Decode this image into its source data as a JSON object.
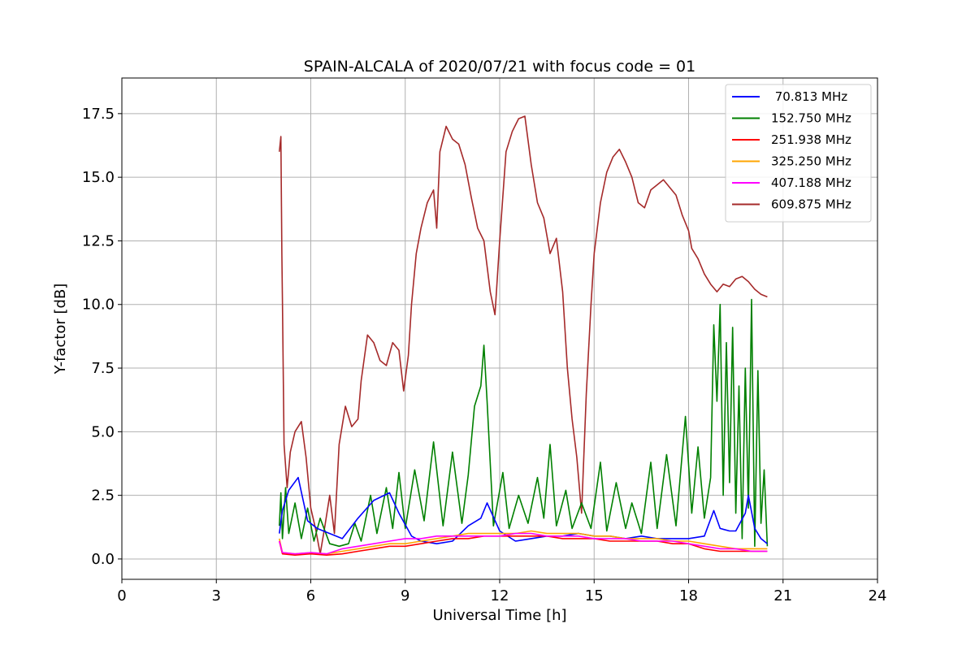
{
  "chart_data": {
    "type": "line",
    "title": "SPAIN-ALCALA of 2020/07/21 with focus code = 01",
    "xlabel": "Universal Time [h]",
    "ylabel": "Y-factor [dB]",
    "xlim": [
      0,
      24
    ],
    "ylim": [
      -0.8,
      18.9
    ],
    "xticks": [
      0,
      3,
      6,
      9,
      12,
      15,
      18,
      21,
      24
    ],
    "xtick_labels": [
      "0",
      "3",
      "6",
      "9",
      "12",
      "15",
      "18",
      "21",
      "24"
    ],
    "yticks": [
      0,
      2.5,
      5,
      7.5,
      10,
      12.5,
      15,
      17.5
    ],
    "ytick_labels": [
      "0.0",
      "2.5",
      "5.0",
      "7.5",
      "10.0",
      "12.5",
      "15.0",
      "17.5"
    ],
    "grid": true,
    "legend_position": "top-right",
    "series": [
      {
        "name": " 70.813 MHz",
        "color": "#0000ff",
        "points": [
          [
            5.0,
            1.0
          ],
          [
            5.1,
            1.9
          ],
          [
            5.3,
            2.7
          ],
          [
            5.6,
            3.2
          ],
          [
            5.9,
            1.5
          ],
          [
            6.2,
            1.2
          ],
          [
            6.6,
            1.0
          ],
          [
            7.0,
            0.8
          ],
          [
            7.5,
            1.6
          ],
          [
            8.0,
            2.3
          ],
          [
            8.5,
            2.6
          ],
          [
            8.8,
            1.8
          ],
          [
            9.2,
            0.9
          ],
          [
            9.5,
            0.7
          ],
          [
            10.0,
            0.6
          ],
          [
            10.5,
            0.7
          ],
          [
            11.0,
            1.3
          ],
          [
            11.4,
            1.6
          ],
          [
            11.6,
            2.2
          ],
          [
            12.0,
            1.1
          ],
          [
            12.5,
            0.7
          ],
          [
            13.0,
            0.8
          ],
          [
            13.5,
            0.9
          ],
          [
            14.0,
            0.9
          ],
          [
            14.5,
            1.0
          ],
          [
            15.0,
            0.9
          ],
          [
            15.5,
            0.9
          ],
          [
            16.0,
            0.8
          ],
          [
            16.5,
            0.9
          ],
          [
            17.0,
            0.8
          ],
          [
            17.5,
            0.8
          ],
          [
            18.0,
            0.8
          ],
          [
            18.5,
            0.9
          ],
          [
            18.8,
            1.9
          ],
          [
            19.0,
            1.2
          ],
          [
            19.3,
            1.1
          ],
          [
            19.5,
            1.1
          ],
          [
            19.8,
            1.8
          ],
          [
            19.9,
            2.5
          ],
          [
            20.1,
            1.2
          ],
          [
            20.3,
            0.8
          ],
          [
            20.5,
            0.6
          ]
        ]
      },
      {
        "name": "152.750 MHz",
        "color": "#008000",
        "points": [
          [
            5.0,
            1.3
          ],
          [
            5.05,
            2.6
          ],
          [
            5.1,
            0.8
          ],
          [
            5.2,
            2.8
          ],
          [
            5.3,
            1.0
          ],
          [
            5.5,
            2.2
          ],
          [
            5.7,
            0.8
          ],
          [
            5.9,
            2.0
          ],
          [
            6.1,
            0.7
          ],
          [
            6.3,
            1.6
          ],
          [
            6.6,
            0.6
          ],
          [
            6.9,
            0.5
          ],
          [
            7.2,
            0.6
          ],
          [
            7.4,
            1.4
          ],
          [
            7.6,
            0.7
          ],
          [
            7.9,
            2.5
          ],
          [
            8.1,
            1.0
          ],
          [
            8.4,
            2.8
          ],
          [
            8.6,
            1.2
          ],
          [
            8.8,
            3.4
          ],
          [
            9.0,
            1.2
          ],
          [
            9.3,
            3.5
          ],
          [
            9.6,
            1.5
          ],
          [
            9.9,
            4.6
          ],
          [
            10.2,
            1.3
          ],
          [
            10.5,
            4.2
          ],
          [
            10.8,
            1.4
          ],
          [
            11.0,
            3.3
          ],
          [
            11.2,
            6.0
          ],
          [
            11.4,
            6.8
          ],
          [
            11.5,
            8.4
          ],
          [
            11.6,
            6.2
          ],
          [
            11.8,
            1.3
          ],
          [
            12.1,
            3.4
          ],
          [
            12.3,
            1.2
          ],
          [
            12.6,
            2.5
          ],
          [
            12.9,
            1.4
          ],
          [
            13.2,
            3.2
          ],
          [
            13.4,
            1.6
          ],
          [
            13.6,
            4.5
          ],
          [
            13.8,
            1.3
          ],
          [
            14.1,
            2.7
          ],
          [
            14.3,
            1.2
          ],
          [
            14.6,
            2.2
          ],
          [
            14.9,
            1.2
          ],
          [
            15.2,
            3.8
          ],
          [
            15.4,
            1.1
          ],
          [
            15.7,
            3.0
          ],
          [
            16.0,
            1.2
          ],
          [
            16.2,
            2.2
          ],
          [
            16.5,
            1.0
          ],
          [
            16.8,
            3.8
          ],
          [
            17.0,
            1.2
          ],
          [
            17.3,
            4.1
          ],
          [
            17.6,
            1.3
          ],
          [
            17.9,
            5.6
          ],
          [
            18.1,
            1.8
          ],
          [
            18.3,
            4.4
          ],
          [
            18.5,
            1.6
          ],
          [
            18.7,
            3.2
          ],
          [
            18.8,
            9.2
          ],
          [
            18.9,
            6.2
          ],
          [
            19.0,
            10.0
          ],
          [
            19.1,
            2.5
          ],
          [
            19.2,
            8.5
          ],
          [
            19.3,
            3.0
          ],
          [
            19.4,
            9.1
          ],
          [
            19.5,
            1.8
          ],
          [
            19.6,
            6.8
          ],
          [
            19.7,
            0.8
          ],
          [
            19.8,
            7.5
          ],
          [
            19.9,
            2.0
          ],
          [
            20.0,
            10.2
          ],
          [
            20.1,
            0.5
          ],
          [
            20.2,
            7.4
          ],
          [
            20.3,
            1.4
          ],
          [
            20.4,
            3.5
          ],
          [
            20.5,
            0.5
          ]
        ]
      },
      {
        "name": "251.938 MHz",
        "color": "#ff0000",
        "points": [
          [
            5.0,
            0.7
          ],
          [
            5.1,
            0.2
          ],
          [
            5.5,
            0.15
          ],
          [
            6.0,
            0.2
          ],
          [
            6.5,
            0.15
          ],
          [
            7.0,
            0.2
          ],
          [
            7.5,
            0.3
          ],
          [
            8.0,
            0.4
          ],
          [
            8.5,
            0.5
          ],
          [
            9.0,
            0.5
          ],
          [
            9.5,
            0.6
          ],
          [
            10.0,
            0.7
          ],
          [
            10.5,
            0.8
          ],
          [
            11.0,
            0.8
          ],
          [
            11.5,
            0.9
          ],
          [
            12.0,
            0.9
          ],
          [
            12.5,
            0.9
          ],
          [
            13.0,
            0.9
          ],
          [
            13.5,
            0.9
          ],
          [
            14.0,
            0.8
          ],
          [
            14.5,
            0.8
          ],
          [
            15.0,
            0.8
          ],
          [
            15.5,
            0.7
          ],
          [
            16.0,
            0.7
          ],
          [
            16.5,
            0.7
          ],
          [
            17.0,
            0.7
          ],
          [
            17.5,
            0.6
          ],
          [
            18.0,
            0.6
          ],
          [
            18.5,
            0.4
          ],
          [
            19.0,
            0.3
          ],
          [
            19.5,
            0.3
          ],
          [
            20.0,
            0.3
          ],
          [
            20.5,
            0.3
          ]
        ]
      },
      {
        "name": "325.250 MHz",
        "color": "#ffa500",
        "points": [
          [
            5.0,
            0.8
          ],
          [
            5.1,
            0.25
          ],
          [
            5.5,
            0.2
          ],
          [
            6.0,
            0.25
          ],
          [
            6.5,
            0.2
          ],
          [
            7.0,
            0.3
          ],
          [
            7.5,
            0.4
          ],
          [
            8.0,
            0.5
          ],
          [
            8.5,
            0.6
          ],
          [
            9.0,
            0.6
          ],
          [
            9.5,
            0.7
          ],
          [
            10.0,
            0.8
          ],
          [
            10.5,
            0.9
          ],
          [
            11.0,
            1.0
          ],
          [
            11.5,
            1.0
          ],
          [
            12.0,
            1.0
          ],
          [
            12.5,
            1.0
          ],
          [
            13.0,
            1.1
          ],
          [
            13.5,
            1.0
          ],
          [
            14.0,
            1.0
          ],
          [
            14.5,
            1.0
          ],
          [
            15.0,
            0.9
          ],
          [
            15.5,
            0.9
          ],
          [
            16.0,
            0.8
          ],
          [
            16.5,
            0.8
          ],
          [
            17.0,
            0.8
          ],
          [
            17.5,
            0.7
          ],
          [
            18.0,
            0.7
          ],
          [
            18.5,
            0.6
          ],
          [
            19.0,
            0.5
          ],
          [
            19.5,
            0.4
          ],
          [
            20.0,
            0.4
          ],
          [
            20.5,
            0.4
          ]
        ]
      },
      {
        "name": "407.188 MHz",
        "color": "#ff00ff",
        "points": [
          [
            5.0,
            0.7
          ],
          [
            5.1,
            0.25
          ],
          [
            5.5,
            0.2
          ],
          [
            6.0,
            0.25
          ],
          [
            6.5,
            0.2
          ],
          [
            7.0,
            0.4
          ],
          [
            7.5,
            0.5
          ],
          [
            8.0,
            0.6
          ],
          [
            8.5,
            0.7
          ],
          [
            9.0,
            0.8
          ],
          [
            9.5,
            0.8
          ],
          [
            10.0,
            0.9
          ],
          [
            10.5,
            0.9
          ],
          [
            11.0,
            0.9
          ],
          [
            11.5,
            0.9
          ],
          [
            12.0,
            0.9
          ],
          [
            12.5,
            1.0
          ],
          [
            13.0,
            1.0
          ],
          [
            13.5,
            0.9
          ],
          [
            14.0,
            0.9
          ],
          [
            14.5,
            0.9
          ],
          [
            15.0,
            0.8
          ],
          [
            15.5,
            0.8
          ],
          [
            16.0,
            0.8
          ],
          [
            16.5,
            0.7
          ],
          [
            17.0,
            0.7
          ],
          [
            17.5,
            0.7
          ],
          [
            18.0,
            0.6
          ],
          [
            18.5,
            0.5
          ],
          [
            19.0,
            0.4
          ],
          [
            19.5,
            0.4
          ],
          [
            20.0,
            0.3
          ],
          [
            20.5,
            0.3
          ]
        ]
      },
      {
        "name": "609.875 MHz",
        "color": "#a52a2a",
        "points": [
          [
            5.0,
            16.0
          ],
          [
            5.05,
            16.6
          ],
          [
            5.08,
            12.0
          ],
          [
            5.1,
            10.2
          ],
          [
            5.15,
            4.5
          ],
          [
            5.25,
            2.8
          ],
          [
            5.35,
            4.2
          ],
          [
            5.5,
            5.0
          ],
          [
            5.7,
            5.4
          ],
          [
            5.85,
            4.0
          ],
          [
            6.0,
            2.0
          ],
          [
            6.15,
            1.2
          ],
          [
            6.3,
            0.2
          ],
          [
            6.45,
            1.3
          ],
          [
            6.6,
            2.5
          ],
          [
            6.75,
            1.0
          ],
          [
            6.9,
            4.5
          ],
          [
            7.1,
            6.0
          ],
          [
            7.3,
            5.2
          ],
          [
            7.5,
            5.5
          ],
          [
            7.6,
            7.0
          ],
          [
            7.8,
            8.8
          ],
          [
            8.0,
            8.5
          ],
          [
            8.2,
            7.8
          ],
          [
            8.4,
            7.6
          ],
          [
            8.6,
            8.5
          ],
          [
            8.8,
            8.2
          ],
          [
            8.95,
            6.6
          ],
          [
            9.1,
            8.0
          ],
          [
            9.2,
            10.0
          ],
          [
            9.35,
            12.0
          ],
          [
            9.5,
            13.0
          ],
          [
            9.7,
            14.0
          ],
          [
            9.9,
            14.5
          ],
          [
            10.0,
            13.0
          ],
          [
            10.1,
            16.0
          ],
          [
            10.3,
            17.0
          ],
          [
            10.5,
            16.5
          ],
          [
            10.7,
            16.3
          ],
          [
            10.9,
            15.5
          ],
          [
            11.1,
            14.2
          ],
          [
            11.3,
            13.0
          ],
          [
            11.5,
            12.5
          ],
          [
            11.7,
            10.5
          ],
          [
            11.85,
            9.6
          ],
          [
            12.0,
            12.5
          ],
          [
            12.2,
            16.0
          ],
          [
            12.4,
            16.8
          ],
          [
            12.6,
            17.3
          ],
          [
            12.8,
            17.4
          ],
          [
            13.0,
            15.5
          ],
          [
            13.2,
            14.0
          ],
          [
            13.4,
            13.4
          ],
          [
            13.6,
            12.0
          ],
          [
            13.8,
            12.6
          ],
          [
            14.0,
            10.5
          ],
          [
            14.15,
            7.5
          ],
          [
            14.3,
            5.5
          ],
          [
            14.45,
            4.0
          ],
          [
            14.6,
            1.8
          ],
          [
            14.75,
            6.5
          ],
          [
            14.9,
            10.0
          ],
          [
            15.0,
            12.0
          ],
          [
            15.2,
            14.0
          ],
          [
            15.4,
            15.2
          ],
          [
            15.6,
            15.8
          ],
          [
            15.8,
            16.1
          ],
          [
            16.0,
            15.6
          ],
          [
            16.2,
            15.0
          ],
          [
            16.4,
            14.0
          ],
          [
            16.6,
            13.8
          ],
          [
            16.8,
            14.5
          ],
          [
            17.0,
            14.7
          ],
          [
            17.2,
            14.9
          ],
          [
            17.4,
            14.6
          ],
          [
            17.6,
            14.3
          ],
          [
            17.8,
            13.5
          ],
          [
            18.0,
            12.9
          ],
          [
            18.1,
            12.2
          ],
          [
            18.3,
            11.8
          ],
          [
            18.5,
            11.2
          ],
          [
            18.7,
            10.8
          ],
          [
            18.9,
            10.5
          ],
          [
            19.1,
            10.8
          ],
          [
            19.3,
            10.7
          ],
          [
            19.5,
            11.0
          ],
          [
            19.7,
            11.1
          ],
          [
            19.9,
            10.9
          ],
          [
            20.1,
            10.6
          ],
          [
            20.3,
            10.4
          ],
          [
            20.5,
            10.3
          ]
        ]
      }
    ]
  }
}
